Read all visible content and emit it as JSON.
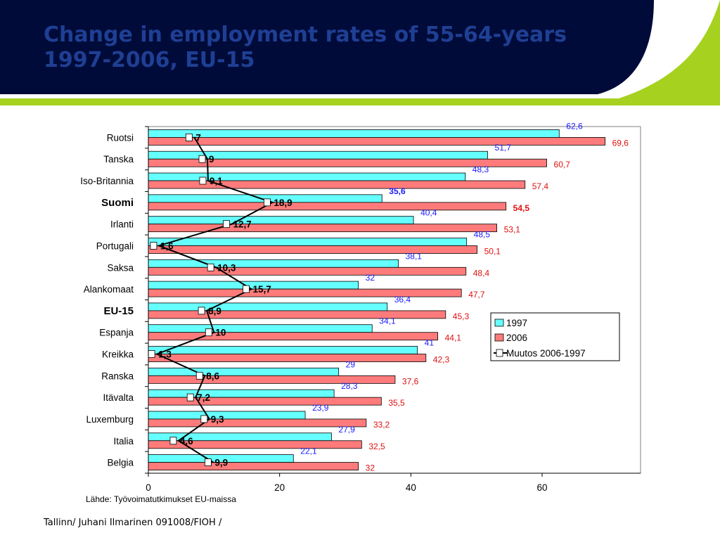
{
  "page": {
    "title": "Change in employment rates of 55-64-years 1997-2006,  EU-15",
    "source": "Lähde: Työvoimatutkimukset EU-maissa",
    "footer": "Tallinn/ Juhani Ilmarinen 091008/FIOH /"
  },
  "colors": {
    "header_bg": "#000b3a",
    "accent": "#a6d11f",
    "title": "#1f3f93",
    "bar_1997": "#66ffff",
    "bar_2006": "#ff7b7b",
    "label_1997": "#1a1aff",
    "label_2006": "#e01010",
    "line": "#000000"
  },
  "chart_data": {
    "type": "bar",
    "orientation": "horizontal",
    "categories": [
      "Ruotsi",
      "Tanska",
      "Iso-Britannia",
      "Suomi",
      "Irlanti",
      "Portugali",
      "Saksa",
      "Alankomaat",
      "EU-15",
      "Espanja",
      "Kreikka",
      "Ranska",
      "Itävalta",
      "Luxemburg",
      "Italia",
      "Belgia"
    ],
    "highlighted_categories": [
      "Suomi",
      "EU-15"
    ],
    "series": [
      {
        "name": "1997",
        "values": [
          62.6,
          51.7,
          48.3,
          35.6,
          40.4,
          48.5,
          38.1,
          32,
          36.4,
          34.1,
          41,
          29,
          28.3,
          23.9,
          27.9,
          22.1
        ],
        "labels": [
          "62,6",
          "51,7",
          "48,3",
          "35,6",
          "40,4",
          "48,5",
          "38,1",
          "32",
          "36,4",
          "34,1",
          "41",
          "29",
          "28,3",
          "23,9",
          "27,9",
          "22,1"
        ]
      },
      {
        "name": "2006",
        "values": [
          69.6,
          60.7,
          57.4,
          54.5,
          53.1,
          50.1,
          48.4,
          47.7,
          45.3,
          44.1,
          42.3,
          37.6,
          35.5,
          33.2,
          32.5,
          32
        ],
        "labels": [
          "69,6",
          "60,7",
          "57,4",
          "54,5",
          "53,1",
          "50,1",
          "48,4",
          "47,7",
          "45,3",
          "44,1",
          "42,3",
          "37,6",
          "35,5",
          "33,2",
          "32,5",
          "32"
        ]
      },
      {
        "name": "Muutos 2006-1997",
        "type": "line",
        "values": [
          7,
          9,
          9.1,
          18.9,
          12.7,
          1.6,
          10.3,
          15.7,
          8.9,
          10,
          1.3,
          8.6,
          7.2,
          9.3,
          4.6,
          9.9
        ],
        "labels": [
          "7",
          "9",
          "9,1",
          "18,9",
          "12,7",
          "1,6",
          "10,3",
          "15,7",
          "8,9",
          "10",
          "1,3",
          "8,6",
          "7,2",
          "9,3",
          "4,6",
          "9,9"
        ]
      }
    ],
    "xlim": [
      0,
      75
    ],
    "xticks": [
      0,
      20,
      40,
      60
    ],
    "xtick_labels": [
      "0",
      "20",
      "40",
      "60"
    ],
    "grid": false,
    "legend_position": "right"
  }
}
